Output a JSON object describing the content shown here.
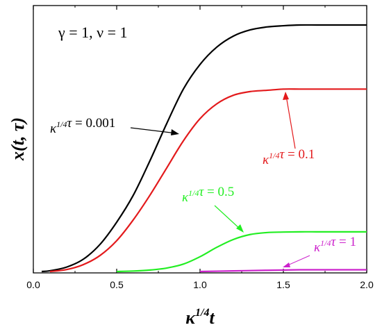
{
  "chart_data": {
    "type": "line",
    "xlabel": "κ^{1/4}t",
    "ylabel": "x(t, τ)",
    "xlim": [
      0.0,
      2.0
    ],
    "ylim": [
      0.0,
      1.0
    ],
    "xticks": [
      "0.0",
      "0.5",
      "1.0",
      "1.5",
      "2.0"
    ],
    "parameters_text": "γ = 1,  ν = 1",
    "series": [
      {
        "name": "κ^{1/4}τ = 0.001",
        "color": "#000000",
        "x": [
          0.05,
          0.1,
          0.2,
          0.3,
          0.4,
          0.5,
          0.6,
          0.7,
          0.8,
          0.9,
          1.0,
          1.1,
          1.2,
          1.3,
          1.4,
          1.5,
          1.6,
          1.7,
          1.8,
          1.9,
          2.0
        ],
        "y": [
          0.0,
          0.003,
          0.018,
          0.05,
          0.11,
          0.2,
          0.31,
          0.45,
          0.6,
          0.74,
          0.84,
          0.91,
          0.955,
          0.98,
          0.992,
          0.997,
          1.0,
          1.0,
          1.0,
          1.0,
          1.0
        ]
      },
      {
        "name": "κ^{1/4}τ = 0.1",
        "color": "#e31a1c",
        "x": [
          0.1,
          0.2,
          0.3,
          0.4,
          0.5,
          0.6,
          0.7,
          0.8,
          0.9,
          1.0,
          1.1,
          1.2,
          1.3,
          1.4,
          1.5,
          1.6,
          1.7,
          1.8,
          1.9,
          2.0
        ],
        "y": [
          0.0,
          0.008,
          0.028,
          0.065,
          0.125,
          0.21,
          0.31,
          0.42,
          0.53,
          0.62,
          0.68,
          0.715,
          0.73,
          0.735,
          0.74,
          0.74,
          0.74,
          0.74,
          0.74,
          0.74
        ]
      },
      {
        "name": "κ^{1/4}τ = 0.5",
        "color": "#22ee22",
        "x": [
          0.5,
          0.6,
          0.7,
          0.8,
          0.9,
          1.0,
          1.1,
          1.2,
          1.3,
          1.4,
          1.5,
          1.6,
          1.7,
          1.8,
          1.9,
          2.0
        ],
        "y": [
          0.0,
          0.002,
          0.006,
          0.014,
          0.03,
          0.06,
          0.098,
          0.13,
          0.15,
          0.158,
          0.16,
          0.161,
          0.161,
          0.161,
          0.161,
          0.161
        ]
      },
      {
        "name": "κ^{1/4}τ = 1",
        "color": "#cc22cc",
        "x": [
          1.0,
          1.2,
          1.4,
          1.5,
          1.6,
          1.8,
          2.0
        ],
        "y": [
          0.0,
          0.0025,
          0.005,
          0.006,
          0.007,
          0.007,
          0.007
        ]
      }
    ]
  }
}
